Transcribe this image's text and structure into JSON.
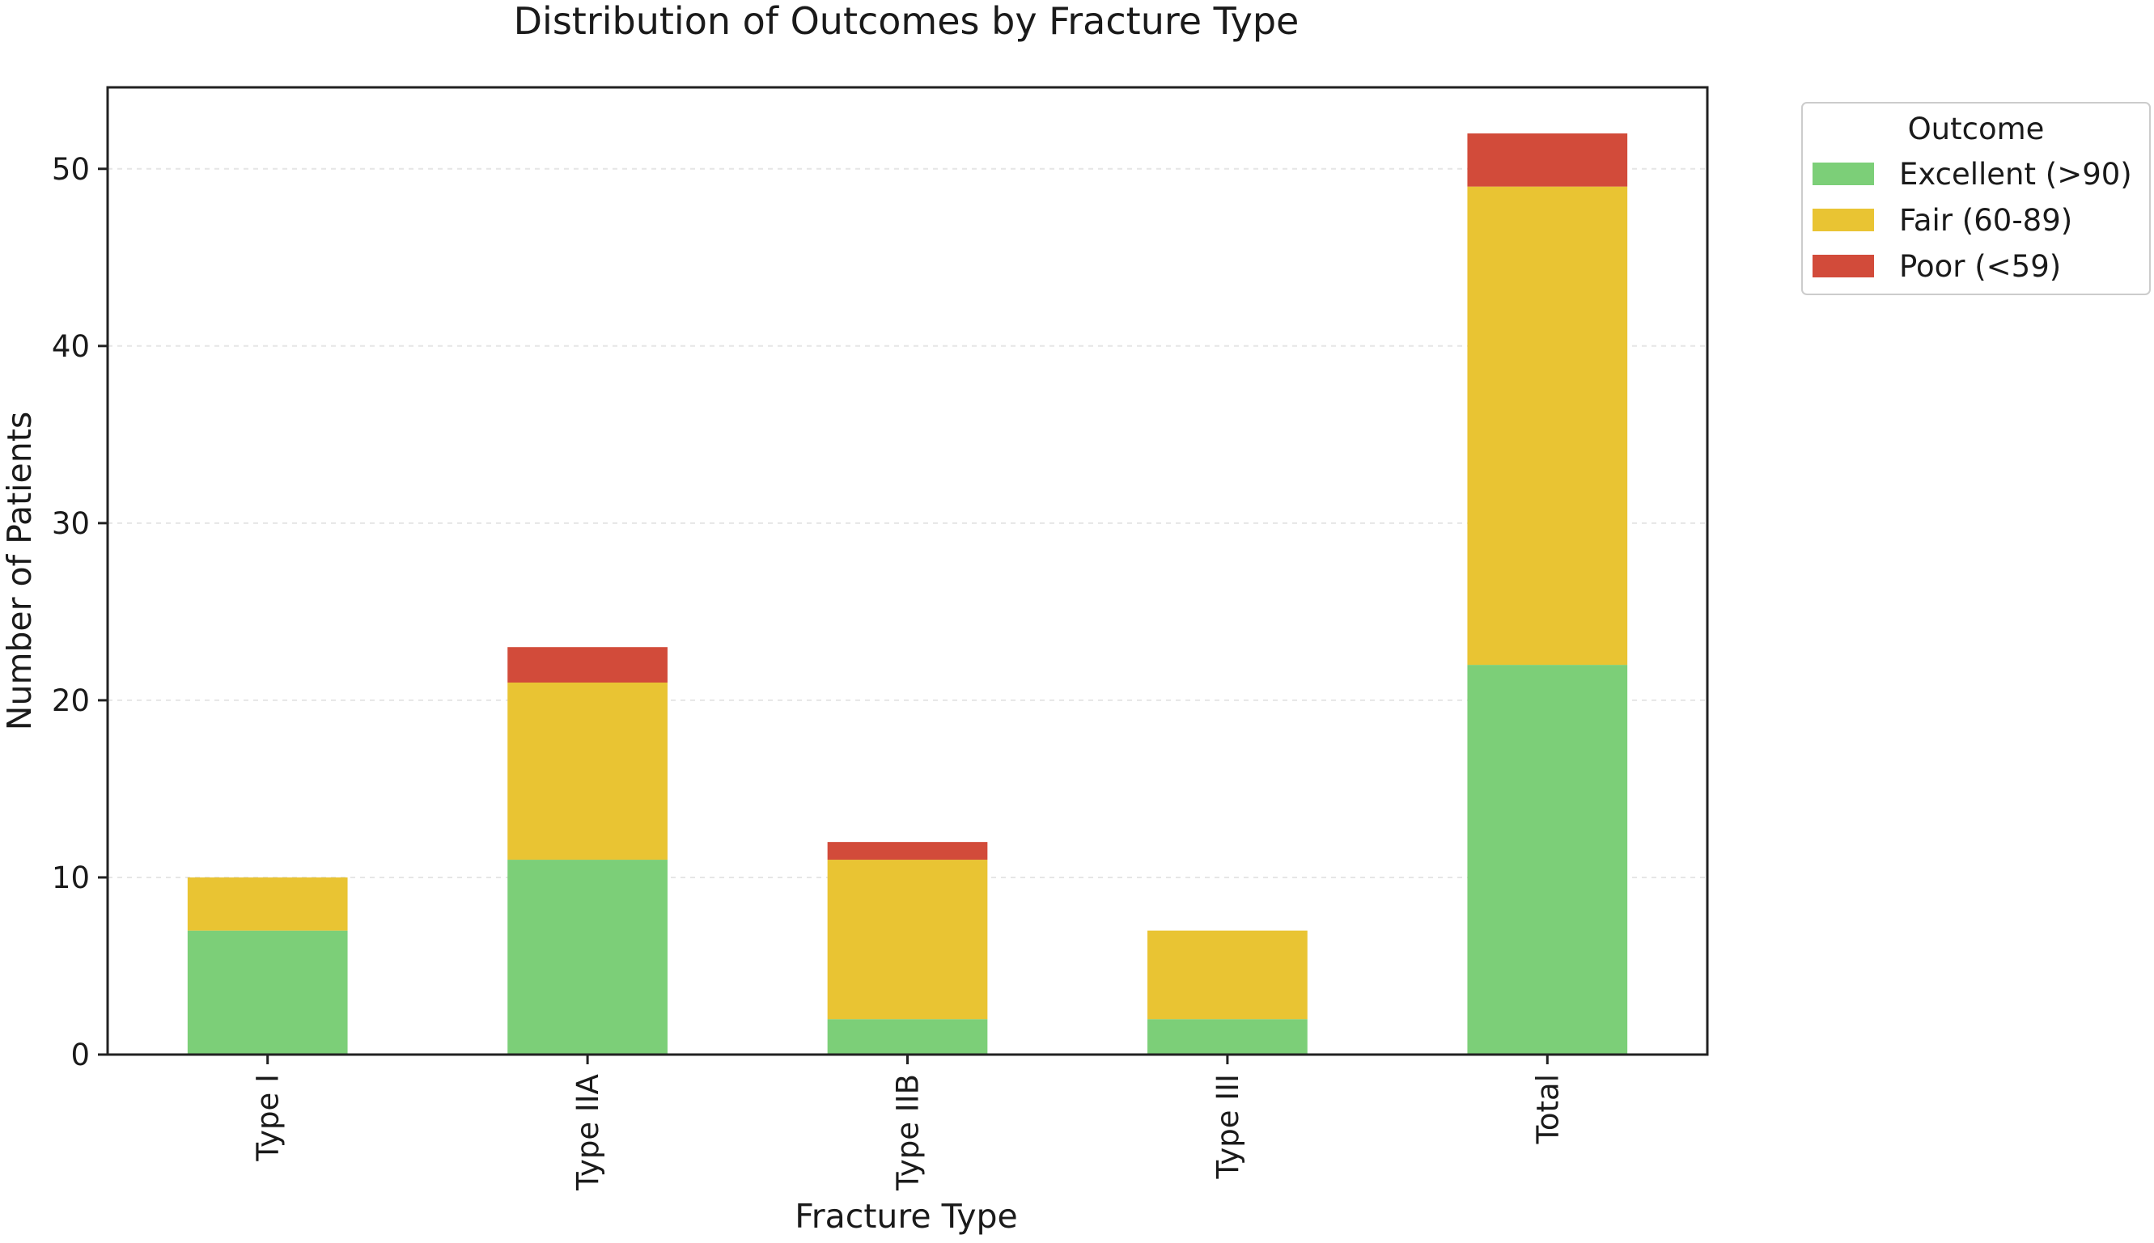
{
  "chart_data": {
    "type": "bar",
    "stacked": true,
    "title": "Distribution of Outcomes by Fracture Type",
    "xlabel": "Fracture Type",
    "ylabel": "Number of Patients",
    "categories": [
      "Type I",
      "Type IIA",
      "Type IIB",
      "Type III",
      "Total"
    ],
    "series": [
      {
        "name": "Excellent (>90)",
        "color": "#7ccf78",
        "values": [
          7,
          11,
          2,
          2,
          22
        ]
      },
      {
        "name": "Fair (60-89)",
        "color": "#e9c433",
        "values": [
          3,
          10,
          9,
          5,
          27
        ]
      },
      {
        "name": "Poor (<59)",
        "color": "#d24b3a",
        "values": [
          0,
          2,
          1,
          0,
          3
        ]
      }
    ],
    "ylim": [
      0,
      54.6
    ],
    "yticks": [
      0,
      10,
      20,
      30,
      40,
      50
    ],
    "grid": true,
    "legend": {
      "title": "Outcome",
      "position": "outside-top-right"
    }
  }
}
